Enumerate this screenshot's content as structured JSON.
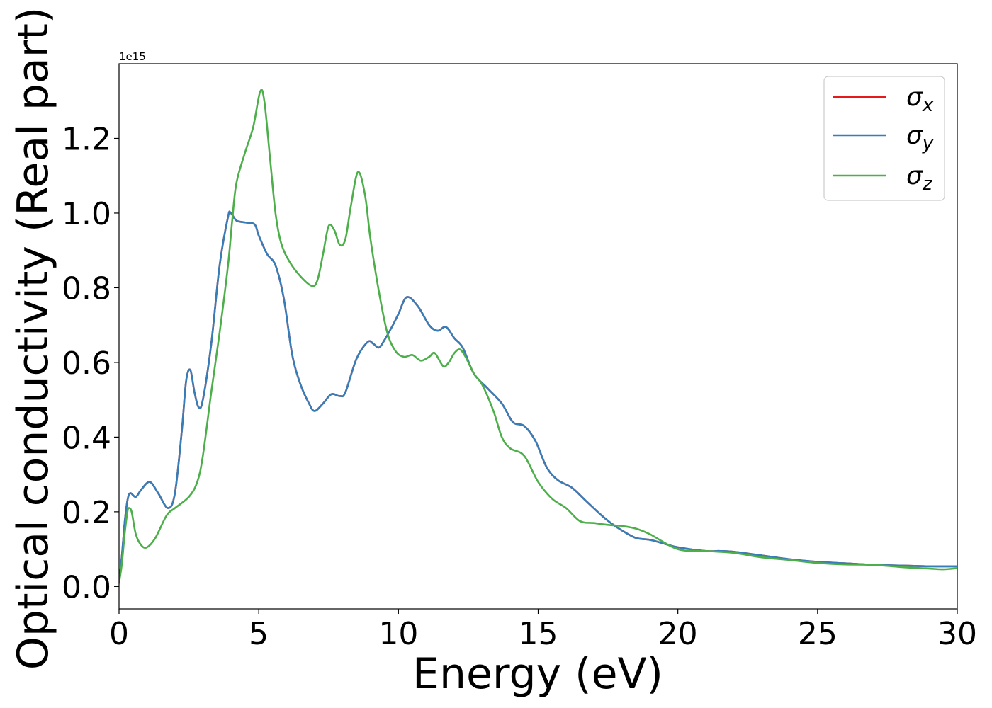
{
  "chart_data": {
    "type": "line",
    "xlabel": "Energy (eV)",
    "ylabel": "Optical conductivity (Real part)",
    "offset_text": "1e15",
    "xlim": [
      0,
      30
    ],
    "ylim": [
      -0.06,
      1.4
    ],
    "y_scale_factor": "1e15",
    "xticks": [
      0,
      5,
      10,
      15,
      20,
      25,
      30
    ],
    "xtick_labels": [
      "0",
      "5",
      "10",
      "15",
      "20",
      "25",
      "30"
    ],
    "yticks": [
      0.0,
      0.2,
      0.4,
      0.6,
      0.8,
      1.0,
      1.2
    ],
    "ytick_labels": [
      "0.0",
      "0.2",
      "0.4",
      "0.6",
      "0.8",
      "1.0",
      "1.2"
    ],
    "grid": false,
    "legend": {
      "position": "top-right",
      "entries": [
        {
          "base": "σ",
          "sub": "x",
          "color": "#e41a1c"
        },
        {
          "base": "σ",
          "sub": "y",
          "color": "#377eb8"
        },
        {
          "base": "σ",
          "sub": "z",
          "color": "#4daf4a"
        }
      ]
    },
    "series": [
      {
        "name": "σx",
        "color": "#e41a1c",
        "x": [
          0,
          0.1,
          0.2,
          0.3,
          0.4,
          0.6,
          0.8,
          1.1,
          1.4,
          1.75,
          2.0,
          2.25,
          2.4,
          2.55,
          2.7,
          2.85,
          3.0,
          3.3,
          3.6,
          3.9,
          4.0,
          4.2,
          4.5,
          4.85,
          5.0,
          5.3,
          5.6,
          5.9,
          6.2,
          6.5,
          6.8,
          7.0,
          7.3,
          7.6,
          7.9,
          8.1,
          8.5,
          8.9,
          9.1,
          9.3,
          9.5,
          9.8,
          10.0,
          10.3,
          10.7,
          11.1,
          11.4,
          11.7,
          12.0,
          12.3,
          12.7,
          13.2,
          13.7,
          14.1,
          14.5,
          14.9,
          15.3,
          15.7,
          16.2,
          16.7,
          17.2,
          17.6,
          18.0,
          18.5,
          19.0,
          19.5,
          20.0,
          21.0,
          21.5,
          22.0,
          23.0,
          24.0,
          25.0,
          26.0,
          27.0,
          28.0,
          29.0,
          30.0
        ],
        "y": [
          0.01,
          0.08,
          0.17,
          0.23,
          0.25,
          0.24,
          0.26,
          0.28,
          0.25,
          0.21,
          0.25,
          0.42,
          0.55,
          0.58,
          0.52,
          0.48,
          0.5,
          0.65,
          0.86,
          0.99,
          1.0,
          0.98,
          0.975,
          0.97,
          0.94,
          0.89,
          0.86,
          0.77,
          0.62,
          0.54,
          0.49,
          0.47,
          0.49,
          0.515,
          0.51,
          0.52,
          0.61,
          0.655,
          0.65,
          0.64,
          0.66,
          0.7,
          0.73,
          0.775,
          0.75,
          0.7,
          0.685,
          0.695,
          0.665,
          0.64,
          0.57,
          0.53,
          0.49,
          0.44,
          0.43,
          0.39,
          0.32,
          0.285,
          0.265,
          0.23,
          0.195,
          0.17,
          0.15,
          0.13,
          0.125,
          0.115,
          0.105,
          0.095,
          0.095,
          0.093,
          0.083,
          0.073,
          0.066,
          0.062,
          0.058,
          0.056,
          0.054,
          0.054
        ]
      },
      {
        "name": "σy",
        "color": "#377eb8",
        "x": [
          0,
          0.1,
          0.2,
          0.3,
          0.4,
          0.6,
          0.8,
          1.1,
          1.4,
          1.75,
          2.0,
          2.25,
          2.4,
          2.55,
          2.7,
          2.85,
          3.0,
          3.3,
          3.6,
          3.9,
          4.0,
          4.2,
          4.5,
          4.85,
          5.0,
          5.3,
          5.6,
          5.9,
          6.2,
          6.5,
          6.8,
          7.0,
          7.3,
          7.6,
          7.9,
          8.1,
          8.5,
          8.9,
          9.1,
          9.3,
          9.5,
          9.8,
          10.0,
          10.3,
          10.7,
          11.1,
          11.4,
          11.7,
          12.0,
          12.3,
          12.7,
          13.2,
          13.7,
          14.1,
          14.5,
          14.9,
          15.3,
          15.7,
          16.2,
          16.7,
          17.2,
          17.6,
          18.0,
          18.5,
          19.0,
          19.5,
          20.0,
          21.0,
          21.5,
          22.0,
          23.0,
          24.0,
          25.0,
          26.0,
          27.0,
          28.0,
          29.0,
          30.0
        ],
        "y": [
          0.01,
          0.08,
          0.17,
          0.23,
          0.25,
          0.24,
          0.26,
          0.28,
          0.25,
          0.21,
          0.25,
          0.42,
          0.55,
          0.58,
          0.52,
          0.48,
          0.5,
          0.65,
          0.86,
          0.99,
          1.0,
          0.98,
          0.975,
          0.97,
          0.94,
          0.89,
          0.86,
          0.77,
          0.62,
          0.54,
          0.49,
          0.47,
          0.49,
          0.515,
          0.51,
          0.52,
          0.61,
          0.655,
          0.65,
          0.64,
          0.66,
          0.7,
          0.73,
          0.775,
          0.75,
          0.7,
          0.685,
          0.695,
          0.665,
          0.64,
          0.57,
          0.53,
          0.49,
          0.44,
          0.43,
          0.39,
          0.32,
          0.285,
          0.265,
          0.23,
          0.195,
          0.17,
          0.15,
          0.13,
          0.125,
          0.115,
          0.105,
          0.095,
          0.095,
          0.093,
          0.083,
          0.073,
          0.066,
          0.062,
          0.058,
          0.056,
          0.054,
          0.054
        ]
      },
      {
        "name": "σz",
        "color": "#4daf4a",
        "x": [
          0,
          0.1,
          0.2,
          0.3,
          0.35,
          0.45,
          0.6,
          0.8,
          1.0,
          1.3,
          1.7,
          2.0,
          2.5,
          2.8,
          3.0,
          3.3,
          3.6,
          3.9,
          4.05,
          4.2,
          4.5,
          4.8,
          5.05,
          5.2,
          5.4,
          5.6,
          5.8,
          6.1,
          6.5,
          6.9,
          7.1,
          7.3,
          7.5,
          7.7,
          7.9,
          8.1,
          8.3,
          8.55,
          8.8,
          9.0,
          9.3,
          9.6,
          9.9,
          10.2,
          10.5,
          10.8,
          11.1,
          11.3,
          11.6,
          11.8,
          12.0,
          12.2,
          12.4,
          12.7,
          13.0,
          13.4,
          13.7,
          14.0,
          14.5,
          15.0,
          15.5,
          16.0,
          16.5,
          17.0,
          17.5,
          18.0,
          18.5,
          19.0,
          20.0,
          21.0,
          22.0,
          23.0,
          24.0,
          25.0,
          26.0,
          27.0,
          28.0,
          29.0,
          29.5,
          30.0
        ],
        "y": [
          0.01,
          0.06,
          0.14,
          0.2,
          0.21,
          0.2,
          0.14,
          0.11,
          0.105,
          0.13,
          0.19,
          0.21,
          0.24,
          0.28,
          0.35,
          0.52,
          0.68,
          0.86,
          0.98,
          1.08,
          1.16,
          1.23,
          1.325,
          1.3,
          1.15,
          1.0,
          0.92,
          0.87,
          0.83,
          0.805,
          0.82,
          0.89,
          0.965,
          0.955,
          0.915,
          0.93,
          1.02,
          1.11,
          1.05,
          0.93,
          0.79,
          0.68,
          0.63,
          0.615,
          0.62,
          0.605,
          0.615,
          0.625,
          0.59,
          0.6,
          0.625,
          0.635,
          0.615,
          0.57,
          0.54,
          0.47,
          0.4,
          0.37,
          0.35,
          0.28,
          0.235,
          0.21,
          0.175,
          0.17,
          0.165,
          0.162,
          0.155,
          0.14,
          0.1,
          0.095,
          0.09,
          0.078,
          0.071,
          0.063,
          0.059,
          0.058,
          0.052,
          0.048,
          0.046,
          0.049
        ]
      }
    ]
  }
}
